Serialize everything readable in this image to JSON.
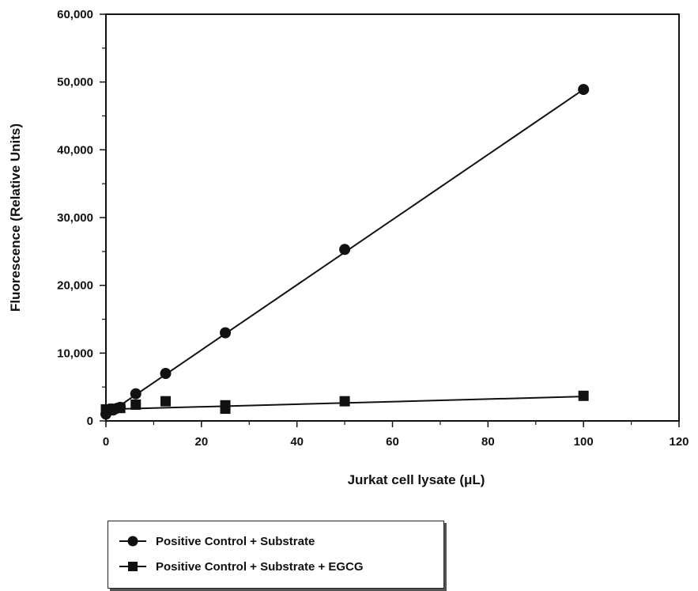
{
  "chart_data": {
    "type": "line",
    "xlabel": "Jurkat cell lysate (μL)",
    "ylabel": "Fluorescence (Relative Units)",
    "xlim": [
      0,
      120
    ],
    "ylim": [
      0,
      60000
    ],
    "xticks": [
      0,
      20,
      40,
      60,
      80,
      100,
      120
    ],
    "yticks": [
      0,
      10000,
      20000,
      30000,
      40000,
      50000,
      60000
    ],
    "xtick_labels": [
      "0",
      "20",
      "40",
      "60",
      "80",
      "100",
      "120"
    ],
    "ytick_labels": [
      "0",
      "10,000",
      "20,000",
      "30,000",
      "40,000",
      "50,000",
      "60,000"
    ],
    "grid": false,
    "legend_position": "below",
    "series": [
      {
        "name": "Positive Control + Substrate",
        "marker": "circle",
        "color": "#111111",
        "x": [
          0,
          1.5,
          3,
          6.25,
          12.5,
          25,
          50,
          100
        ],
        "y": [
          1000,
          1600,
          2000,
          4000,
          7000,
          13000,
          25300,
          48900
        ],
        "fit": [
          [
            0,
            850
          ],
          [
            100,
            48900
          ]
        ]
      },
      {
        "name": "Positive Control + Substrate + EGCG",
        "marker": "square",
        "color": "#111111",
        "x": [
          0,
          1.5,
          3,
          6.25,
          12.5,
          25,
          25,
          50,
          100
        ],
        "y": [
          1700,
          1800,
          1900,
          2400,
          2900,
          1800,
          2300,
          2900,
          3700
        ],
        "fit": [
          [
            0,
            1700
          ],
          [
            100,
            3600
          ]
        ]
      }
    ]
  }
}
